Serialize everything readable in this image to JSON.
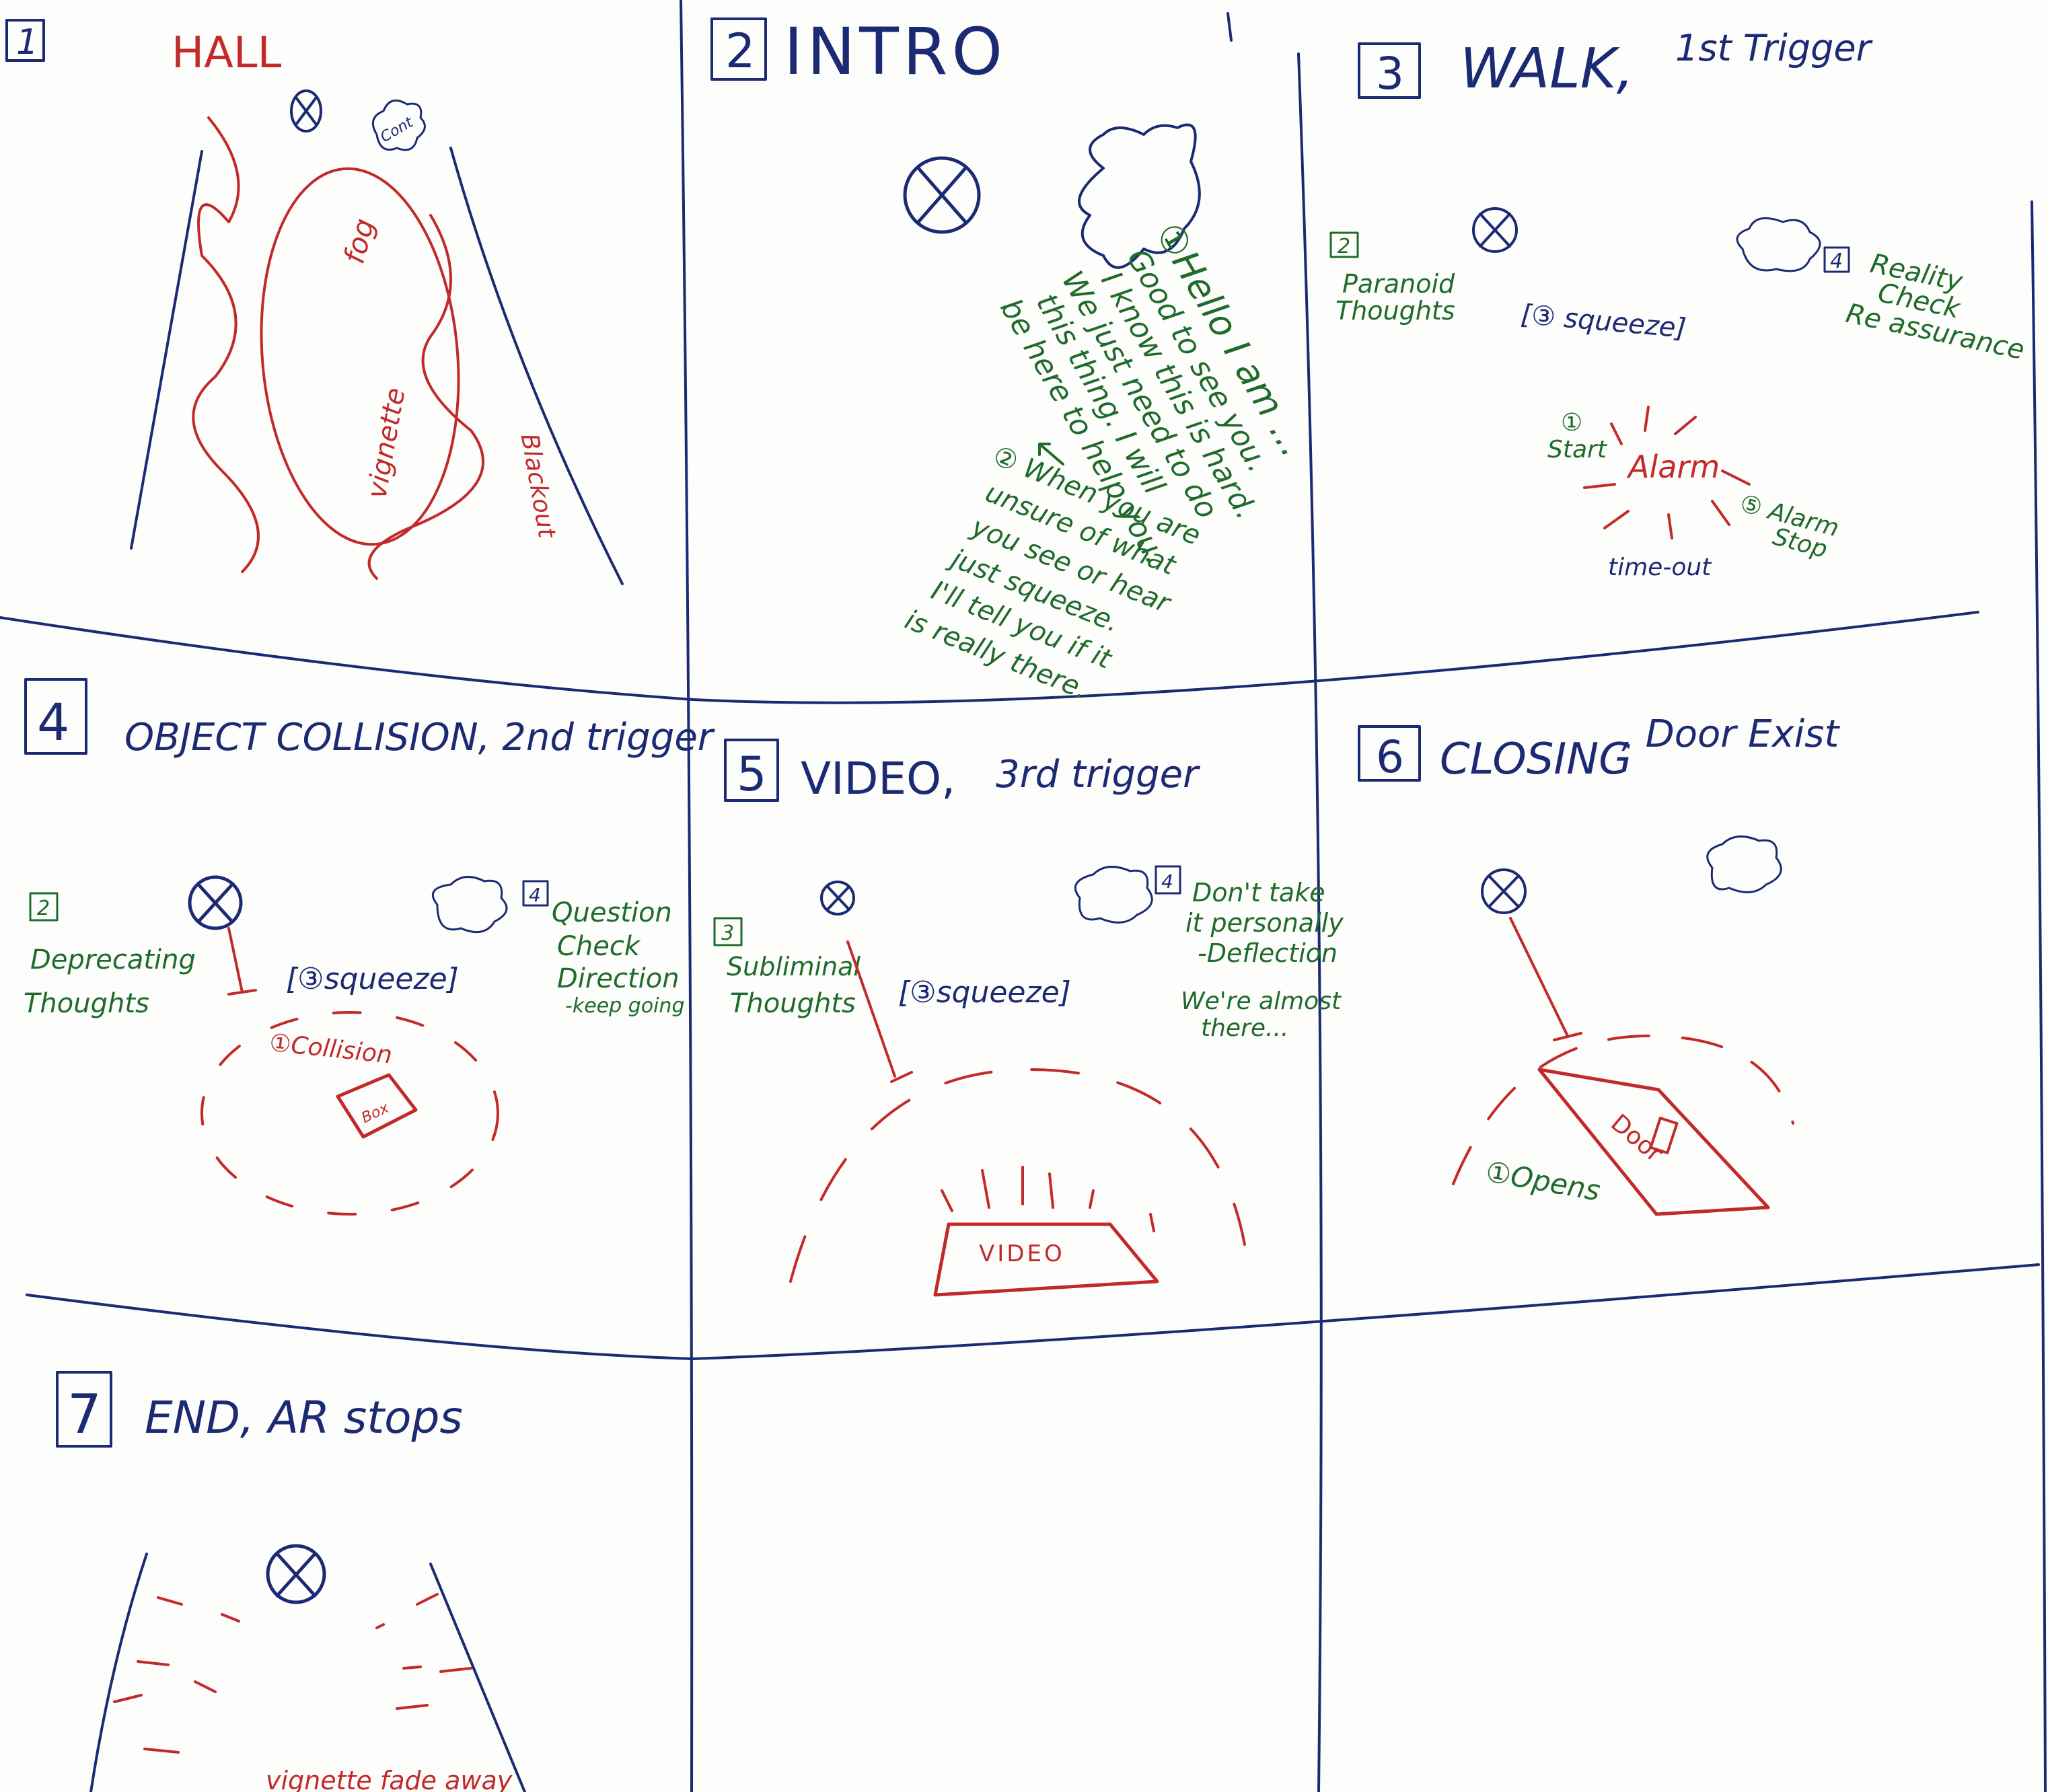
{
  "colors": {
    "ink_blue": "#1c2a73",
    "ink_red": "#c22a2a",
    "ink_green": "#1f6b2a",
    "paper": "#fdfdfc"
  },
  "panels": [
    {
      "num": "1",
      "title": "HALL",
      "labels": {
        "fog": "fog",
        "vignette": "vignette",
        "blackout": "Blackout",
        "cloud": "Cont"
      }
    },
    {
      "num": "2",
      "title": "INTRO",
      "lines": [
        "①Hello I am ...",
        "Good to see you.",
        "I know this is hard.",
        "We just need to do",
        "this thing. I will",
        "be here to help you.",
        "② When you are",
        "unsure of what",
        "you see or hear",
        "just squeeze.",
        "I'll tell you if it",
        "is really there."
      ]
    },
    {
      "num": "3",
      "title": "WALK,",
      "subtitle": "1st Trigger",
      "badge2": "2",
      "paranoid": [
        "Paranoid",
        "Thoughts"
      ],
      "squeeze": "[③ squeeze]",
      "badge4": "4",
      "reality": [
        "Reality",
        "Check",
        "Re assurance"
      ],
      "start": [
        "①",
        "Start"
      ],
      "alarm": "Alarm",
      "alarm_stop": [
        "⑤ Alarm",
        "Stop"
      ],
      "timeout": "time-out"
    },
    {
      "num": "4",
      "title": "OBJECT COLLISION, 2nd trigger",
      "badge2": "2",
      "deprecating": [
        "Deprecating",
        "Thoughts"
      ],
      "squeeze": "[③squeeze]",
      "badge4": "4",
      "question": [
        "Question",
        "Check",
        "Direction",
        "-keep going"
      ],
      "collision": "①Collision",
      "box": "Box"
    },
    {
      "num": "5",
      "title": "VIDEO,",
      "subtitle": "3rd trigger",
      "badge3": "3",
      "subliminal": [
        "Subliminal",
        "Thoughts"
      ],
      "squeeze": "[③squeeze]",
      "badge4": "4",
      "deflection": [
        "Don't take",
        "it personally",
        "-Deflection"
      ],
      "almost": [
        "We're almost",
        "there..."
      ],
      "video": "VIDEO"
    },
    {
      "num": "6",
      "title": "CLOSING",
      "subtitle": ", Door Exist",
      "door": "Door",
      "opens": "①Opens"
    },
    {
      "num": "7",
      "title": "END, AR stops",
      "vignette": "vignette fade away"
    }
  ]
}
